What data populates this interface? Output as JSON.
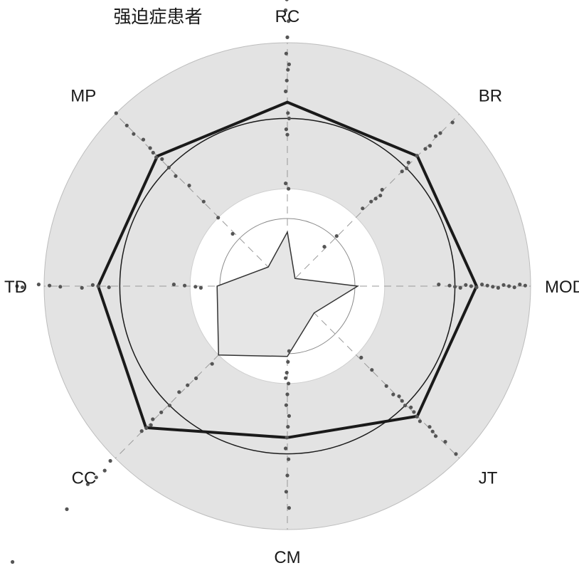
{
  "chart_data": {
    "type": "radar",
    "title": "强迫症患者",
    "axes": [
      "RC",
      "BR",
      "MOD",
      "JT",
      "CM",
      "CC",
      "TD",
      "MP"
    ],
    "rings": [
      0.6,
      1.8,
      3.1,
      4.5
    ],
    "grid": true,
    "colors": {
      "outer_band": "#e3e3e3",
      "inner_fill": "#ffffff",
      "ring_line": "#1a1a1a",
      "thin_ring": "#8a8a8a",
      "spoke": "#9a9a9a",
      "main_series": "#1a1a1a",
      "inner_series_fill": "#e6e6e6",
      "inner_series_stroke": "#333333",
      "points": "#555555"
    },
    "series": [
      {
        "values": [
          3.4,
          3.4,
          3.5,
          3.4,
          2.8,
          3.7,
          3.5,
          3.4
        ]
      },
      {
        "values": [
          1.0,
          0.2,
          1.3,
          0.7,
          1.3,
          1.8,
          1.3,
          0.5
        ]
      }
    ],
    "points": [
      [
        0,
        [
          3.6,
          3.8,
          4.0,
          4.1,
          4.3,
          4.6,
          4.9,
          5.1,
          5.3,
          3.2,
          3.1,
          2.9,
          2.8,
          1.8,
          1.9
        ]
      ],
      [
        1,
        [
          2.0,
          2.2,
          2.3,
          2.4,
          2.5,
          3.0,
          3.1,
          3.2,
          3.4,
          3.6,
          3.7,
          3.9,
          4.0,
          4.3,
          1.0,
          1.3
        ]
      ],
      [
        2,
        [
          2.8,
          3.0,
          3.1,
          3.2,
          3.3,
          3.4,
          3.5,
          3.6,
          3.7,
          3.8,
          3.9,
          4.0,
          4.1,
          4.2,
          4.3,
          4.4
        ]
      ],
      [
        3,
        [
          1.9,
          2.2,
          2.6,
          2.8,
          2.9,
          3.0,
          3.1,
          3.2,
          3.3,
          3.4,
          3.5,
          3.7,
          3.8,
          3.9,
          4.1,
          4.4
        ]
      ],
      [
        4,
        [
          1.2,
          1.4,
          1.6,
          1.7,
          1.8,
          2.0,
          2.2,
          2.4,
          2.6,
          2.8,
          3.0,
          3.2,
          3.5,
          3.8,
          4.1
        ]
      ],
      [
        5,
        [
          2.0,
          2.4,
          2.6,
          2.8,
          3.1,
          3.3,
          3.5,
          3.6,
          3.7,
          3.8,
          4.6,
          4.8,
          5.0,
          5.2,
          5.8,
          7.2
        ]
      ],
      [
        6,
        [
          1.6,
          1.7,
          1.9,
          2.1,
          3.3,
          3.5,
          3.6,
          3.8,
          4.2,
          4.4,
          4.6,
          4.9,
          5.0
        ]
      ],
      [
        7,
        [
          1.4,
          1.8,
          2.2,
          2.6,
          2.9,
          3.1,
          3.3,
          3.4,
          3.5,
          3.6,
          3.8,
          4.0,
          4.2,
          4.5
        ]
      ]
    ]
  }
}
